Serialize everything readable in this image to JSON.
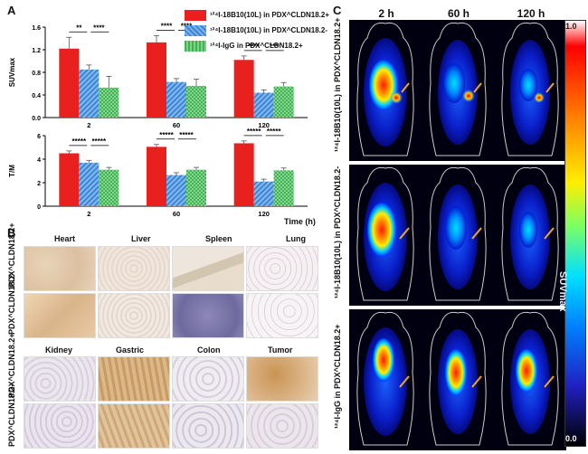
{
  "panels": {
    "a": "A",
    "b": "B",
    "c": "C"
  },
  "legend": [
    {
      "text": "¹²⁴I-18B10(10L) in PDX^CLDN18.2+",
      "color": "#e8211f"
    },
    {
      "text": "¹²⁴I-18B10(10L) in PDX^CLDN18.2-",
      "color": "#3a86d6"
    },
    {
      "text": "¹²⁴I-IgG in PDX^CLDN18.2+",
      "color": "#3fb34f"
    }
  ],
  "time_label": "Time (h)",
  "chart_data": [
    {
      "type": "bar",
      "ylabel": "SUVmax",
      "ylim": [
        0,
        1.6
      ],
      "yticks": [
        "0.0",
        "0.4",
        "0.8",
        "1.2",
        "1.6"
      ],
      "categories": [
        "2",
        "60",
        "120"
      ],
      "series": [
        {
          "name": "¹²⁴I-18B10(10L) in PDX CLDN18.2+",
          "values": [
            1.22,
            1.33,
            1.02
          ],
          "err": [
            0.2,
            0.12,
            0.07
          ]
        },
        {
          "name": "¹²⁴I-18B10(10L) in PDX CLDN18.2-",
          "values": [
            0.85,
            0.63,
            0.44
          ],
          "err": [
            0.08,
            0.06,
            0.05
          ]
        },
        {
          "name": "¹²⁴I-IgG in PDX CLDN18.2+",
          "values": [
            0.53,
            0.56,
            0.55
          ],
          "err": [
            0.2,
            0.12,
            0.07
          ]
        }
      ],
      "significance": [
        {
          "group": 0,
          "marks": [
            "**",
            "****"
          ]
        },
        {
          "group": 1,
          "marks": [
            "****",
            "****"
          ]
        },
        {
          "group": 2,
          "marks": [
            "****",
            "***"
          ]
        }
      ]
    },
    {
      "type": "bar",
      "ylabel": "T/M",
      "ylim": [
        0,
        6
      ],
      "yticks": [
        "0",
        "2",
        "4",
        "6"
      ],
      "categories": [
        "2",
        "60",
        "120"
      ],
      "series": [
        {
          "name": "¹²⁴I-18B10(10L) in PDX CLDN18.2+",
          "values": [
            4.5,
            5.05,
            5.35
          ],
          "err": [
            0.2,
            0.2,
            0.2
          ]
        },
        {
          "name": "¹²⁴I-18B10(10L) in PDX CLDN18.2-",
          "values": [
            3.7,
            2.65,
            2.1
          ],
          "err": [
            0.2,
            0.2,
            0.2
          ]
        },
        {
          "name": "¹²⁴I-IgG in PDX CLDN18.2+",
          "values": [
            3.1,
            3.1,
            3.05
          ],
          "err": [
            0.2,
            0.2,
            0.2
          ]
        }
      ],
      "significance": [
        {
          "group": 0,
          "marks": [
            "*****",
            "*****"
          ]
        },
        {
          "group": 1,
          "marks": [
            "*****",
            "*****"
          ]
        },
        {
          "group": 2,
          "marks": [
            "*****",
            "*****"
          ]
        }
      ]
    }
  ],
  "histology": {
    "top_headers": [
      "Heart",
      "Liver",
      "Spleen",
      "Lung"
    ],
    "bottom_headers": [
      "Kidney",
      "Gastric",
      "Colon",
      "Tumor"
    ],
    "row_labels": [
      "PDX^CLDN18.2+",
      "PDX^CLDN18.2-",
      "PDX^CLDN18.2+",
      "PDX^CLDN18.2-"
    ]
  },
  "pet": {
    "col_headers": [
      "2 h",
      "60 h",
      "120 h"
    ],
    "row_labels": [
      "¹²⁴I-18B10(10L) in PDX^CLDN18.2+",
      "¹²⁴I-18B10(10L) in PDX^CLDN18.2-",
      "¹²⁴I-IgG in PDX^CLDN18.2+"
    ],
    "colorbar_max": "1.0",
    "colorbar_min": "0.0",
    "colorbar_label": "SUVmax"
  }
}
